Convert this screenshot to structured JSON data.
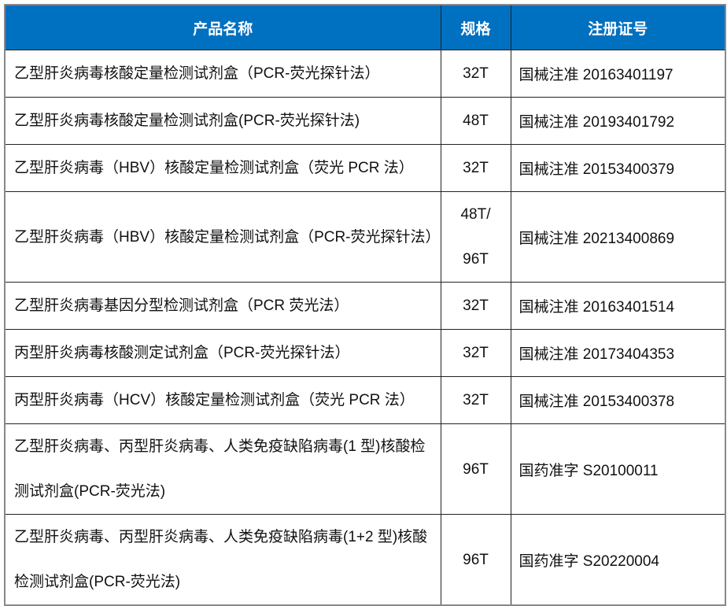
{
  "header_color": "#0070C0",
  "table": {
    "headers": [
      "产品名称",
      "规格",
      "注册证号"
    ],
    "rows": [
      {
        "name": "乙型肝炎病毒核酸定量检测试剂盒（PCR-荧光探针法）",
        "spec": "32T",
        "reg": "国械注准 20163401197"
      },
      {
        "name": "乙型肝炎病毒核酸定量检测试剂盒(PCR-荧光探针法)",
        "spec": "48T",
        "reg": "国械注准 20193401792"
      },
      {
        "name": "乙型肝炎病毒（HBV）核酸定量检测试剂盒（荧光 PCR 法）",
        "spec": "32T",
        "reg": "国械注准 20153400379"
      },
      {
        "name": "乙型肝炎病毒（HBV）核酸定量检测试剂盒（PCR-荧光探针法）",
        "spec": "48T/ 96T",
        "reg": "国械注准 20213400869"
      },
      {
        "name": "乙型肝炎病毒基因分型检测试剂盒（PCR 荧光法）",
        "spec": "32T",
        "reg": "国械注准 20163401514"
      },
      {
        "name": "丙型肝炎病毒核酸测定试剂盒（PCR-荧光探针法）",
        "spec": "32T",
        "reg": "国械注准 20173404353"
      },
      {
        "name": "丙型肝炎病毒（HCV）核酸定量检测试剂盒（荧光 PCR 法）",
        "spec": "32T",
        "reg": "国械注准 20153400378"
      },
      {
        "name": "乙型肝炎病毒、丙型肝炎病毒、人类免疫缺陷病毒(1 型)核酸检测试剂盒(PCR-荧光法)",
        "spec": "96T",
        "reg": "国药准字 S20100011"
      },
      {
        "name": "乙型肝炎病毒、丙型肝炎病毒、人类免疫缺陷病毒(1+2 型)核酸检测试剂盒(PCR-荧光法)",
        "spec": "96T",
        "reg": "国药准字 S20220004"
      }
    ]
  }
}
